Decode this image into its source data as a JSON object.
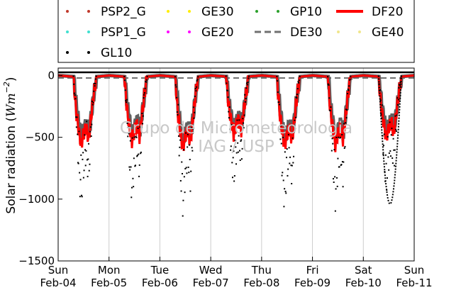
{
  "chart_data": {
    "type": "line",
    "ylabel": "Solar radiation (Wm⁻²)",
    "ylabel_main": "Solar radiation (",
    "ylabel_unit": "Wm",
    "ylabel_exp": "−2",
    "ylabel_close": ")",
    "ylim": [
      -1500,
      60
    ],
    "yticks": [
      {
        "value": 0,
        "label": "0"
      },
      {
        "value": -500,
        "label": "−500"
      },
      {
        "value": -1000,
        "label": "−1000"
      },
      {
        "value": -1500,
        "label": "−1500"
      }
    ],
    "xlim": [
      0,
      7
    ],
    "xticks": [
      {
        "value": 0,
        "day": "Sun",
        "date": "Feb-04"
      },
      {
        "value": 1,
        "day": "Mon",
        "date": "Feb-05"
      },
      {
        "value": 2,
        "day": "Tue",
        "date": "Feb-06"
      },
      {
        "value": 3,
        "day": "Wed",
        "date": "Feb-07"
      },
      {
        "value": 4,
        "day": "Thu",
        "date": "Feb-08"
      },
      {
        "value": 5,
        "day": "Fri",
        "date": "Feb-09"
      },
      {
        "value": 6,
        "day": "Sat",
        "date": "Feb-10"
      },
      {
        "value": 7,
        "day": "Sun",
        "date": "Feb-11"
      }
    ],
    "grid": "vertical",
    "legend_position": "top",
    "watermark": [
      "Grupo de Micrometeorologia",
      "IAG / USP"
    ],
    "series": [
      {
        "name": "PSP2_G",
        "color": "#c0392b",
        "style": "dots"
      },
      {
        "name": "GE30",
        "color": "#ffee00",
        "style": "dots"
      },
      {
        "name": "GP10",
        "color": "#2ca02c",
        "style": "dots"
      },
      {
        "name": "DF20",
        "color": "#ff0000",
        "style": "thick-line"
      },
      {
        "name": "PSP1_G",
        "color": "#40e0d0",
        "style": "dots"
      },
      {
        "name": "GE20",
        "color": "#ff00ff",
        "style": "dots"
      },
      {
        "name": "DE30",
        "color": "#707070",
        "style": "dashed"
      },
      {
        "name": "GE40",
        "color": "#f0e68c",
        "style": "dots"
      },
      {
        "name": "GL10",
        "color": "#000000",
        "style": "dots"
      }
    ],
    "daily_profile": {
      "x": [
        0.0,
        0.3,
        0.35,
        0.4,
        0.45,
        0.5,
        0.55,
        0.6,
        0.65,
        0.7,
        0.75,
        1.0
      ],
      "DF20_min": [
        0,
        -10,
        -280,
        -430,
        -560,
        -470,
        -420,
        -520,
        -330,
        -150,
        -10,
        0
      ],
      "GL10_min": [
        0,
        -10,
        -350,
        -800,
        -1100,
        -850,
        -700,
        -900,
        -500,
        -150,
        -10,
        0
      ],
      "DE30_baseline": -20
    }
  }
}
